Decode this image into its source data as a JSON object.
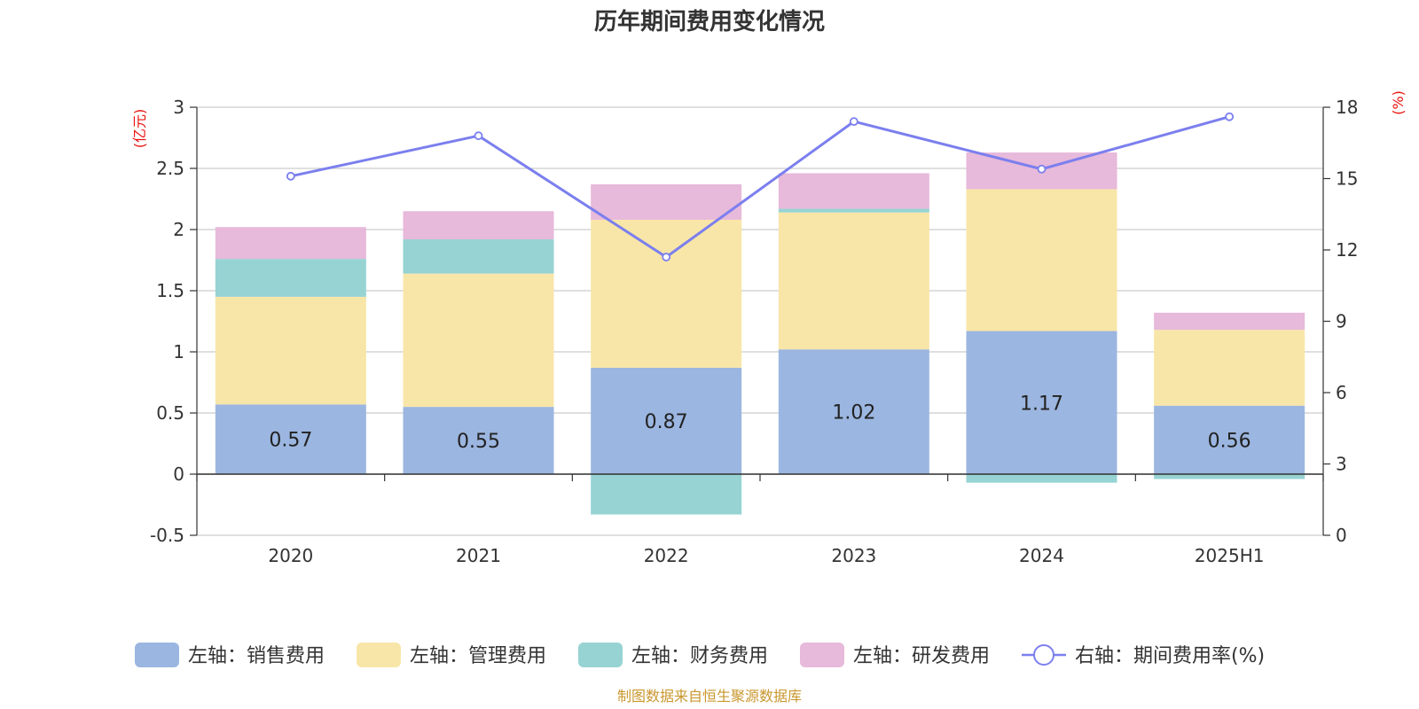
{
  "chart_data": {
    "type": "bar",
    "stacked": true,
    "title": "历年期间费用变化情况",
    "categories": [
      "2020",
      "2021",
      "2022",
      "2023",
      "2024",
      "2025H1"
    ],
    "left_axis": {
      "unit": "(亿元)",
      "ylim": [
        -0.5,
        3
      ],
      "ticks": [
        "3",
        "2.5",
        "2",
        "1.5",
        "1",
        "0.5",
        "0",
        "-0.5"
      ]
    },
    "right_axis": {
      "unit": "(%)",
      "ylim": [
        0,
        18
      ],
      "ticks": [
        "18",
        "15",
        "12",
        "9",
        "6",
        "3",
        "0"
      ]
    },
    "series": [
      {
        "name": "左轴：销售费用",
        "axis": "left",
        "color": "#9bb6e0",
        "values": [
          0.57,
          0.55,
          0.87,
          1.02,
          1.17,
          0.56
        ],
        "labels": [
          "0.57",
          "0.55",
          "0.87",
          "1.02",
          "1.17",
          "0.56"
        ]
      },
      {
        "name": "左轴：管理费用",
        "axis": "left",
        "color": "#f8e6a8",
        "values": [
          0.88,
          1.09,
          1.21,
          1.12,
          1.16,
          0.62
        ]
      },
      {
        "name": "左轴：财务费用",
        "axis": "left",
        "color": "#97d3d3",
        "values": [
          0.31,
          0.28,
          -0.33,
          0.03,
          -0.07,
          -0.04
        ]
      },
      {
        "name": "左轴：研发费用",
        "axis": "left",
        "color": "#e7b9da",
        "values": [
          0.26,
          0.23,
          0.29,
          0.29,
          0.3,
          0.14
        ]
      },
      {
        "name": "右轴：期间费用率(%)",
        "axis": "right",
        "type": "line",
        "color": "#7b7fee",
        "values": [
          15.1,
          16.8,
          11.7,
          17.4,
          15.4,
          17.6
        ]
      }
    ],
    "grid": true,
    "legend_position": "bottom",
    "source": "制图数据来自恒生聚源数据库"
  }
}
